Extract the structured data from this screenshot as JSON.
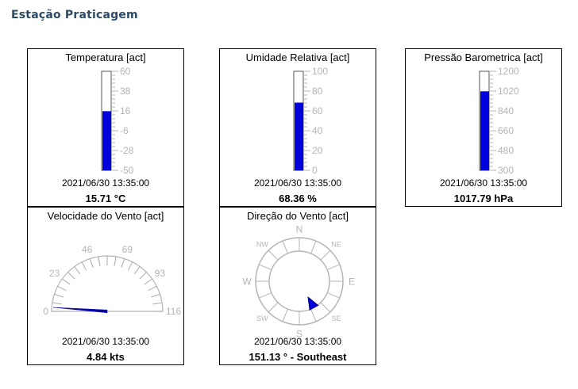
{
  "page": {
    "title": "Estação Praticagem"
  },
  "colors": {
    "accent": "#0000dd",
    "scale": "#b4b4b4",
    "title": "#2b4a66"
  },
  "gauges": {
    "temperature": {
      "title": "Temperatura [act]",
      "timestamp": "2021/06/30 13:35:00",
      "value_text": "15.71 °C",
      "value": 15.71,
      "min": -50,
      "max": 60,
      "ticks": [
        "60",
        "38",
        "16",
        "-6",
        "-28",
        "-50"
      ]
    },
    "humidity": {
      "title": "Umidade Relativa [act]",
      "timestamp": "2021/06/30 13:35:00",
      "value_text": "68.36 %",
      "value": 68.36,
      "min": 0,
      "max": 100,
      "ticks": [
        "100",
        "80",
        "60",
        "40",
        "20",
        "0"
      ]
    },
    "pressure": {
      "title": "Pressão Barometrica [act]",
      "timestamp": "2021/06/30 13:35:00",
      "value_text": "1017.79 hPa",
      "value": 1017.79,
      "min": 300,
      "max": 1200,
      "ticks": [
        "1200",
        "1020",
        "840",
        "660",
        "480",
        "300"
      ]
    },
    "wind_speed": {
      "title": "Velocidade do Vento [act]",
      "timestamp": "2021/06/30 13:35:00",
      "value_text": "4.84 kts",
      "value": 4.84,
      "min": 0,
      "max": 116,
      "ticks": [
        "0",
        "23",
        "46",
        "69",
        "93",
        "116"
      ]
    },
    "wind_direction": {
      "title": "Direção do Vento [act]",
      "timestamp": "2021/06/30 13:35:00",
      "value_text": "151.13 ° - Southeast",
      "value": 151.13,
      "labels": {
        "n": "N",
        "ne": "NE",
        "e": "E",
        "se": "SE",
        "s": "S",
        "sw": "SW",
        "w": "W",
        "nw": "NW"
      }
    }
  }
}
